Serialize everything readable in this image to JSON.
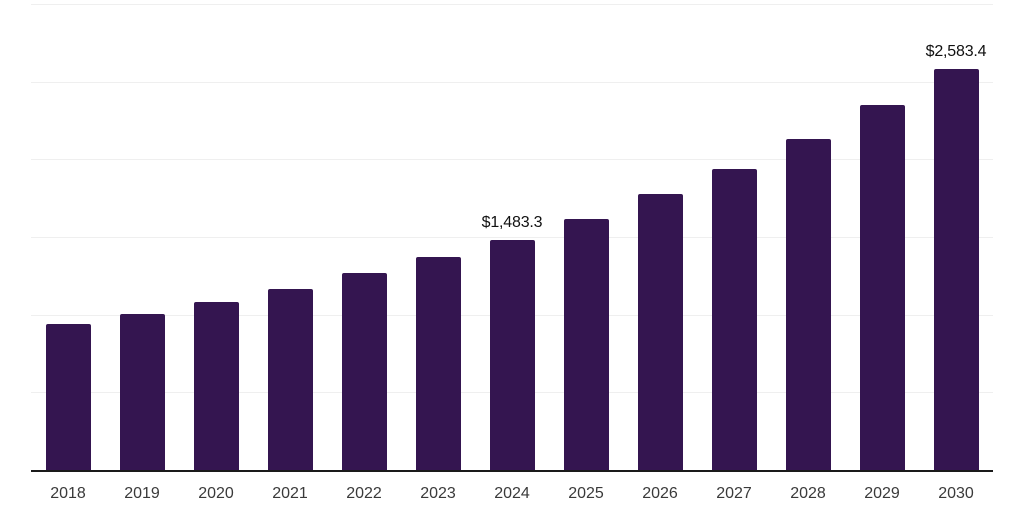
{
  "chart_data": {
    "type": "bar",
    "title": "",
    "subtitle": "",
    "xlabel": "",
    "ylabel": "",
    "legend_position": "none",
    "grid": "horizontal gridlines, no y-axis tick labels",
    "ylim": [
      0,
      3000
    ],
    "grid_step": 500,
    "categories": [
      "2018",
      "2019",
      "2020",
      "2021",
      "2022",
      "2023",
      "2024",
      "2025",
      "2026",
      "2027",
      "2028",
      "2029",
      "2030"
    ],
    "values": [
      940,
      1005,
      1083,
      1168,
      1267,
      1372,
      1483.3,
      1618,
      1774,
      1938,
      2130,
      2350,
      2583.4
    ],
    "values_note": "only 2024 and 2030 carry visible data labels; other values estimated from bar heights against gridlines",
    "value_labels": [
      {
        "category": "2024",
        "text": "$1,483.3"
      },
      {
        "category": "2030",
        "text": "$2,583.4"
      }
    ],
    "colors": {
      "bar": "#341550",
      "axis_line": "#1a1a1a",
      "gridline": "#efefef",
      "value_label": "#111111",
      "tick_label": "#3a3a3a",
      "background": "#ffffff"
    }
  }
}
